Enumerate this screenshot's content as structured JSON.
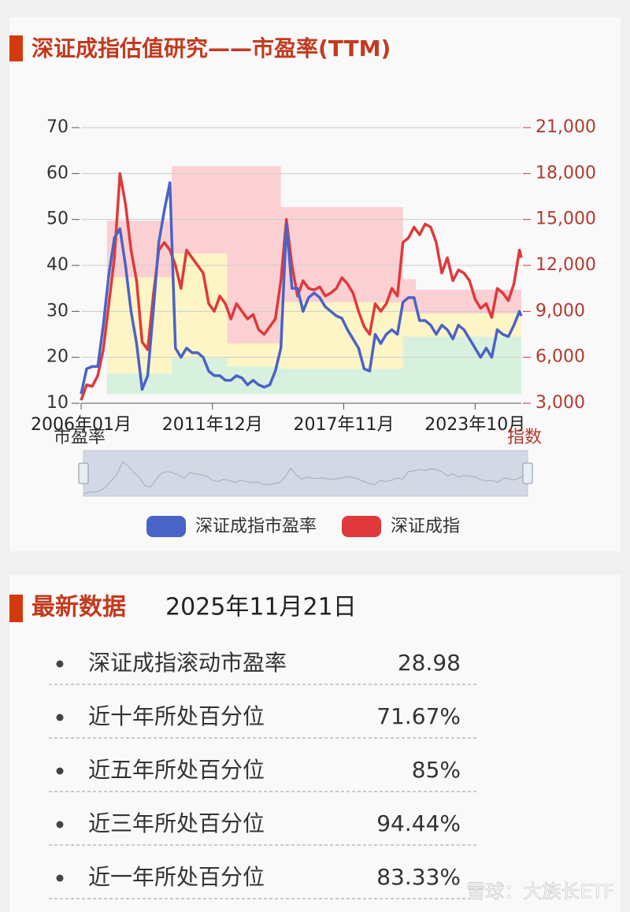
{
  "header": {
    "title": "深证成指估值研究——市盈率(TTM)"
  },
  "chart_data": {
    "type": "line",
    "x": [
      "2006年01月",
      "2006年04月",
      "2006年07月",
      "2006年10月",
      "2007年01月",
      "2007年04月",
      "2007年07月",
      "2007年10月",
      "2008年01月",
      "2008年04月",
      "2008年07月",
      "2008年10月",
      "2009年01月",
      "2009年04月",
      "2009年07月",
      "2009年10月",
      "2010年01月",
      "2010年04月",
      "2010年07月",
      "2010年10月",
      "2011年01月",
      "2011年04月",
      "2011年07月",
      "2011年10月",
      "2012年01月",
      "2012年04月",
      "2012年07月",
      "2012年10月",
      "2013年01月",
      "2013年04月",
      "2013年07月",
      "2013年10月",
      "2014年01月",
      "2014年04月",
      "2014年07月",
      "2014年10月",
      "2015年01月",
      "2015年04月",
      "2015年07月",
      "2015年10月",
      "2016年01月",
      "2016年04月",
      "2016年07月",
      "2016年10月",
      "2017年01月",
      "2017年04月",
      "2017年07月",
      "2017年10月",
      "2018年01月",
      "2018年04月",
      "2018年07月",
      "2018年10月",
      "2019年01月",
      "2019年04月",
      "2019年07月",
      "2019年10月",
      "2020年01月",
      "2020年04月",
      "2020年07月",
      "2020年10月",
      "2021年01月",
      "2021年04月",
      "2021年07月",
      "2021年10月",
      "2022年01月",
      "2022年04月",
      "2022年07月",
      "2022年10月",
      "2023年01月",
      "2023年04月",
      "2023年07月",
      "2023年10月",
      "2024年01月",
      "2024年04月",
      "2024年07月",
      "2024年10月",
      "2025年01月",
      "2025年04月",
      "2025年07月",
      "2025年10月",
      "2025年11月"
    ],
    "xlim": [
      "2006年01月",
      "2025年11月"
    ],
    "xticks": [
      "2006年01月",
      "2011年12月",
      "2017年11月",
      "2023年10月"
    ],
    "series": [
      {
        "name": "深证成指市盈率",
        "color": "#4a63c6",
        "values": [
          12,
          17.5,
          18,
          18,
          27,
          38,
          46,
          48,
          40,
          30,
          23,
          13,
          16,
          30,
          45,
          52,
          58,
          22,
          20,
          22,
          21,
          21,
          20,
          17,
          16,
          16,
          15,
          15,
          16,
          15.5,
          14,
          15,
          14,
          13.5,
          14,
          17,
          22,
          49,
          35,
          35,
          30,
          33,
          34,
          33,
          31,
          30,
          29,
          28.5,
          26,
          24,
          22,
          17.5,
          17,
          25,
          23,
          25,
          26,
          25,
          32,
          33,
          33,
          28,
          28,
          27,
          25,
          27,
          26,
          24,
          27,
          26,
          24,
          22,
          20,
          22,
          20,
          26,
          25,
          24.5,
          27,
          30,
          28.98
        ]
      },
      {
        "name": "深证成指",
        "color": "#e0393b",
        "axis": "y2",
        "values": [
          3200,
          4200,
          4100,
          4800,
          6500,
          9500,
          12500,
          18000,
          16000,
          13000,
          11000,
          7000,
          6500,
          10000,
          13000,
          13500,
          13000,
          12000,
          10500,
          13000,
          12500,
          12000,
          11500,
          9500,
          9000,
          10000,
          9500,
          8500,
          9500,
          9000,
          8500,
          8800,
          7800,
          7500,
          8000,
          8500,
          11000,
          15000,
          12000,
          10000,
          11000,
          10500,
          10400,
          10600,
          10000,
          10200,
          10500,
          11200,
          10800,
          10200,
          9000,
          8000,
          7500,
          9500,
          9000,
          9500,
          10500,
          10000,
          13500,
          13800,
          14500,
          14000,
          14700,
          14500,
          13500,
          11500,
          12500,
          11000,
          11700,
          11500,
          11000,
          9800,
          9200,
          9500,
          8600,
          10500,
          10200,
          9700,
          10800,
          13000,
          12500
        ]
      }
    ],
    "bands": {
      "x": [
        "2007年03月",
        "2010年02月",
        "2012年08月",
        "2015年01月",
        "2020年07月",
        "2021年02月",
        "2025年11月"
      ],
      "base": 12,
      "series": [
        {
          "color": "#fbd0d3",
          "values": [
            49.7,
            61.6,
            61.6,
            52.7,
            37,
            34.7,
            34.7
          ]
        },
        {
          "color": "#fdf5c6",
          "values": [
            37.4,
            42.6,
            23,
            32,
            30,
            29.5,
            29.5
          ]
        },
        {
          "color": "#d8f1df",
          "values": [
            16.5,
            19.8,
            18,
            17.5,
            24.5,
            24.5,
            24.5
          ]
        }
      ]
    },
    "ylim": [
      10,
      70
    ],
    "yticks": [
      10,
      20,
      30,
      40,
      50,
      60,
      70
    ],
    "y2lim": [
      3000,
      21000
    ],
    "y2ticks": [
      {
        "value": 3000,
        "label": "3,000"
      },
      {
        "value": 6000,
        "label": "6,000"
      },
      {
        "value": 9000,
        "label": "9,000"
      },
      {
        "value": 12000,
        "label": "12,000"
      },
      {
        "value": 15000,
        "label": "15,000"
      },
      {
        "value": 18000,
        "label": "18,000"
      },
      {
        "value": 21000,
        "label": "21,000"
      }
    ],
    "ylabel": "市盈率",
    "y2label": "指数",
    "grid": true
  },
  "latest": {
    "title": "最新数据",
    "date": "2025年11月21日",
    "rows": [
      [
        "深证成指滚动市盈率",
        "28.98"
      ],
      [
        "近十年所处百分位",
        "71.67%"
      ],
      [
        "近五年所处百分位",
        "85%"
      ],
      [
        "近三年所处百分位",
        "94.44%"
      ],
      [
        "近一年所处百分位",
        "83.33%"
      ]
    ]
  },
  "watermark": "雪球：大族长ETF"
}
